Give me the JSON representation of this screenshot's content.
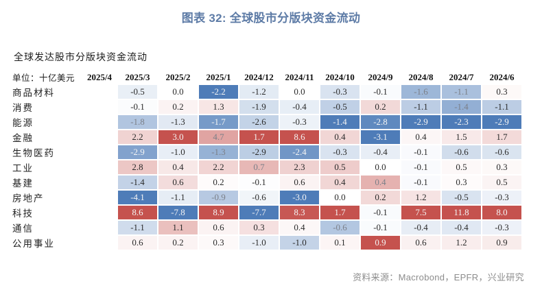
{
  "title": "图表 32: 全球股市分版块资金流动",
  "subtitle": "全球发达股市分版块资金流动",
  "unit_label": "单位：十亿美元",
  "source_note": "资料来源：Macrobond，EPFR，兴业研究",
  "colors": {
    "title": "#5D7BA6",
    "positive_max": "#C5524E",
    "negative_max": "#4E7CB8",
    "neutral": "#FFFFFF",
    "source_text": "#8C8C8C"
  },
  "chart_data": {
    "type": "heatmap",
    "title": "全球发达股市分版块资金流动",
    "unit": "十亿美元",
    "color_scale": "column-wise diverging: red = positive flow, blue = negative flow, white = zero; intensity scaled to each column's max/min",
    "legend_position": "none",
    "columns": [
      "2025/4",
      "2025/3",
      "2025/2",
      "2025/1",
      "2024/12",
      "2024/11",
      "2024/10",
      "2024/9",
      "2024/8",
      "2024/7",
      "2024/6"
    ],
    "rows": [
      {
        "label": "商品材料",
        "values": [
          null,
          -0.5,
          0.0,
          -2.2,
          -1.2,
          0.0,
          -0.3,
          -0.1,
          -1.6,
          -1.1,
          0.3
        ]
      },
      {
        "label": "消费",
        "values": [
          null,
          -0.1,
          0.2,
          1.3,
          -1.9,
          -0.4,
          -0.5,
          0.2,
          -1.1,
          -1.4,
          -1.1
        ]
      },
      {
        "label": "能源",
        "values": [
          null,
          -1.8,
          -1.3,
          -1.7,
          -2.6,
          -0.3,
          -1.4,
          -2.8,
          -2.9,
          -2.3,
          -2.9
        ]
      },
      {
        "label": "金融",
        "values": [
          null,
          2.2,
          3.0,
          4.7,
          1.7,
          8.6,
          0.4,
          -3.1,
          0.4,
          1.5,
          1.7
        ]
      },
      {
        "label": "生物医药",
        "values": [
          null,
          -2.9,
          -1.0,
          -1.3,
          -2.9,
          -2.4,
          -0.3,
          -0.4,
          -0.1,
          -0.6,
          -0.6
        ]
      },
      {
        "label": "工业",
        "values": [
          null,
          2.8,
          0.4,
          2.2,
          0.7,
          2.3,
          0.5,
          0.0,
          -0.1,
          0.5,
          0.3
        ]
      },
      {
        "label": "基建",
        "values": [
          null,
          -1.4,
          0.6,
          0.2,
          -0.1,
          0.6,
          0.4,
          0.4,
          -0.1,
          0.3,
          0.5
        ]
      },
      {
        "label": "房地产",
        "values": [
          null,
          -4.1,
          -1.1,
          -0.9,
          -0.6,
          -3.0,
          0.0,
          0.2,
          1.2,
          -0.5,
          -0.3
        ]
      },
      {
        "label": "科技",
        "values": [
          null,
          8.6,
          -7.8,
          8.9,
          -7.7,
          8.3,
          1.7,
          -0.1,
          7.5,
          11.8,
          8.0
        ]
      },
      {
        "label": "通信",
        "values": [
          null,
          -1.1,
          1.1,
          0.6,
          0.3,
          0.4,
          -0.6,
          -0.1,
          -0.4,
          -0.4,
          -0.3
        ]
      },
      {
        "label": "公用事业",
        "values": [
          null,
          0.6,
          0.2,
          0.3,
          -1.0,
          -1.0,
          0.1,
          0.9,
          0.6,
          1.2,
          0.9
        ]
      }
    ]
  }
}
